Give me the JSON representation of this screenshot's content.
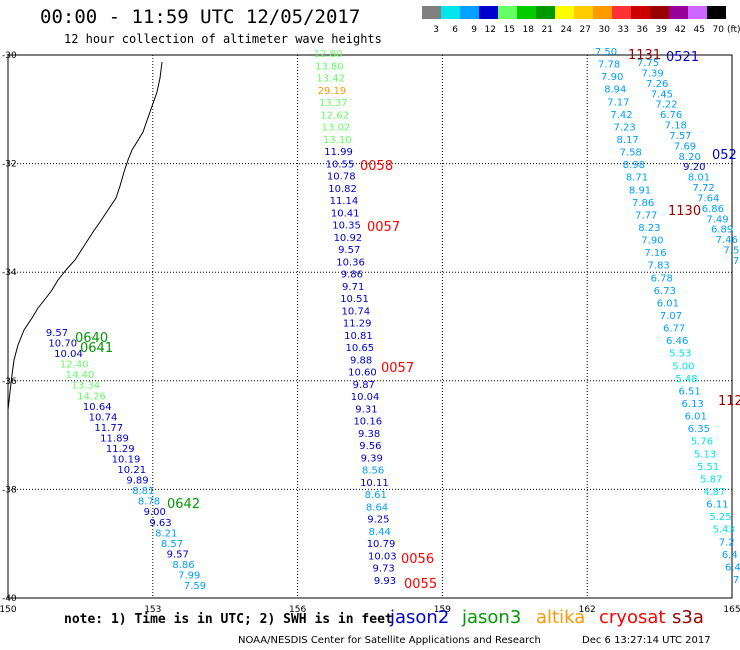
{
  "header": {
    "title": "00:00 - 11:59 UTC 12/05/2017",
    "subtitle": "12 hour collection of altimeter wave heights"
  },
  "colorbar": {
    "unit": "(ft)",
    "bins": [
      {
        "label": "3",
        "color": "#808080"
      },
      {
        "label": "6",
        "color": "#00e5ee"
      },
      {
        "label": "9",
        "color": "#00a0ff"
      },
      {
        "label": "12",
        "color": "#0000cd"
      },
      {
        "label": "15",
        "color": "#66ff66"
      },
      {
        "label": "18",
        "color": "#00cc00"
      },
      {
        "label": "21",
        "color": "#009900"
      },
      {
        "label": "24",
        "color": "#ffff00"
      },
      {
        "label": "27",
        "color": "#ffcc00"
      },
      {
        "label": "30",
        "color": "#ff9900"
      },
      {
        "label": "33",
        "color": "#ff3333"
      },
      {
        "label": "36",
        "color": "#cc0000"
      },
      {
        "label": "39",
        "color": "#990000"
      },
      {
        "label": "42",
        "color": "#990099"
      },
      {
        "label": "45",
        "color": "#cc66ff"
      },
      {
        "label": "70",
        "color": "#000000"
      }
    ]
  },
  "axes": {
    "x_ticks": [
      "150",
      "153",
      "156",
      "159",
      "162",
      "165"
    ],
    "y_ticks": [
      "-30",
      "-32",
      "-34",
      "-36",
      "-38",
      "-40"
    ]
  },
  "footer": {
    "note": "note: 1) Time is in UTC; 2) SWH is in feet",
    "credit": "NOAA/NESDIS Center for Satellite Applications and Research",
    "timestamp": "Dec  6 13:27:14 UTC 2017"
  },
  "legend_satellites": [
    {
      "name": "jason2",
      "color": "#0000cd"
    },
    {
      "name": "jason3",
      "color": "#009900"
    },
    {
      "name": "altika",
      "color": "#ff9900"
    },
    {
      "name": "cryosat",
      "color": "#ff0000"
    },
    {
      "name": "s3a",
      "color": "#990000"
    }
  ],
  "tracks": [
    {
      "id": "t156",
      "labels": [
        [
          "12.80",
          "#66ff66"
        ],
        [
          "13.80",
          "#66ff66"
        ],
        [
          "13.42",
          "#66ff66"
        ],
        [
          "29.19",
          "#ff9900"
        ],
        [
          "13.37",
          "#66ff66"
        ],
        [
          "12.62",
          "#66ff66"
        ],
        [
          "13.02",
          "#66ff66"
        ],
        [
          "13.10",
          "#66ff66"
        ],
        [
          "11.99",
          "#0000cd"
        ],
        [
          "10.55",
          "#0000cd"
        ],
        [
          "10.78",
          "#0000cd"
        ],
        [
          "10.82",
          "#0000cd"
        ],
        [
          "11.14",
          "#0000cd"
        ],
        [
          "10.41",
          "#0000cd"
        ],
        [
          "10.35",
          "#0000cd"
        ],
        [
          "10.92",
          "#0000cd"
        ],
        [
          "9.57",
          "#0000cd"
        ],
        [
          "10.36",
          "#0000cd"
        ],
        [
          "9.86",
          "#0000cd"
        ],
        [
          "9.71",
          "#0000cd"
        ],
        [
          "10.51",
          "#0000cd"
        ],
        [
          "10.74",
          "#0000cd"
        ],
        [
          "11.29",
          "#0000cd"
        ],
        [
          "10.81",
          "#0000cd"
        ],
        [
          "10.65",
          "#0000cd"
        ],
        [
          "9.88",
          "#0000cd"
        ],
        [
          "10.60",
          "#0000cd"
        ],
        [
          "9.87",
          "#0000cd"
        ],
        [
          "10.04",
          "#0000cd"
        ],
        [
          "9.31",
          "#0000cd"
        ],
        [
          "10.16",
          "#0000cd"
        ],
        [
          "9.38",
          "#0000cd"
        ],
        [
          "9.56",
          "#0000cd"
        ],
        [
          "9.39",
          "#0000cd"
        ],
        [
          "8.56",
          "#00a0ff"
        ],
        [
          "10.11",
          "#0000cd"
        ],
        [
          "8.61",
          "#00a0ff"
        ],
        [
          "8.64",
          "#00a0ff"
        ],
        [
          "9.25",
          "#0000cd"
        ],
        [
          "8.44",
          "#00a0ff"
        ],
        [
          "10.79",
          "#0000cd"
        ],
        [
          "10.03",
          "#0000cd"
        ],
        [
          "9.73",
          "#0000cd"
        ],
        [
          "9.93",
          "#0000cd"
        ]
      ]
    },
    {
      "id": "tcoast",
      "labels": [
        [
          "9.57",
          "#0000cd"
        ],
        [
          "10.70",
          "#0000cd"
        ],
        [
          "10.04",
          "#0000cd"
        ],
        [
          "12.40",
          "#66ff66"
        ],
        [
          "14.40",
          "#66ff66"
        ],
        [
          "13.34",
          "#66ff66"
        ],
        [
          "14.26",
          "#66ff66"
        ],
        [
          "10.64",
          "#0000cd"
        ],
        [
          "10.74",
          "#0000cd"
        ],
        [
          "11.77",
          "#0000cd"
        ],
        [
          "11.89",
          "#0000cd"
        ],
        [
          "11.29",
          "#0000cd"
        ],
        [
          "10.19",
          "#0000cd"
        ],
        [
          "10.21",
          "#0000cd"
        ],
        [
          "9.89",
          "#0000cd"
        ],
        [
          "8.81",
          "#00a0ff"
        ],
        [
          "8.78",
          "#00a0ff"
        ],
        [
          "9.00",
          "#0000cd"
        ],
        [
          "9.63",
          "#0000cd"
        ],
        [
          "8.21",
          "#00a0ff"
        ],
        [
          "8.57",
          "#00a0ff"
        ],
        [
          "9.57",
          "#0000cd"
        ],
        [
          "8.86",
          "#00a0ff"
        ],
        [
          "7.99",
          "#00a0ff"
        ],
        [
          "7.59",
          "#00a0ff"
        ]
      ]
    },
    {
      "id": "teast1",
      "labels": [
        [
          "7.50",
          "#00a0ff"
        ],
        [
          "7.78",
          "#00a0ff"
        ],
        [
          "7.90",
          "#00a0ff"
        ],
        [
          "8.94",
          "#00a0ff"
        ],
        [
          "7.17",
          "#00a0ff"
        ],
        [
          "7.42",
          "#00a0ff"
        ],
        [
          "7.23",
          "#00a0ff"
        ],
        [
          "8.17",
          "#00a0ff"
        ],
        [
          "7.58",
          "#00a0ff"
        ],
        [
          "8.98",
          "#00a0ff"
        ],
        [
          "8.71",
          "#00a0ff"
        ],
        [
          "8.91",
          "#00a0ff"
        ],
        [
          "7.86",
          "#00a0ff"
        ],
        [
          "7.77",
          "#00a0ff"
        ],
        [
          "8.23",
          "#00a0ff"
        ],
        [
          "7.90",
          "#00a0ff"
        ],
        [
          "7.16",
          "#00a0ff"
        ],
        [
          "7.83",
          "#00a0ff"
        ],
        [
          "6.78",
          "#00a0ff"
        ],
        [
          "6.73",
          "#00a0ff"
        ],
        [
          "6.01",
          "#00a0ff"
        ],
        [
          "7.07",
          "#00a0ff"
        ],
        [
          "6.77",
          "#00a0ff"
        ],
        [
          "6.46",
          "#00a0ff"
        ],
        [
          "5.53",
          "#00e5ee"
        ],
        [
          "5.00",
          "#00e5ee"
        ],
        [
          "5.48",
          "#00e5ee"
        ],
        [
          "6.51",
          "#00a0ff"
        ],
        [
          "6.13",
          "#00a0ff"
        ],
        [
          "6.01",
          "#00a0ff"
        ],
        [
          "6.35",
          "#00a0ff"
        ],
        [
          "5.76",
          "#00e5ee"
        ],
        [
          "5.13",
          "#00e5ee"
        ],
        [
          "5.51",
          "#00e5ee"
        ],
        [
          "5.87",
          "#00e5ee"
        ],
        [
          "4.87",
          "#00e5ee"
        ],
        [
          "6.11",
          "#00a0ff"
        ],
        [
          "5.25",
          "#00e5ee"
        ],
        [
          "5.43",
          "#00e5ee"
        ],
        [
          "7.2",
          "#00a0ff"
        ],
        [
          "6.4",
          "#00a0ff"
        ],
        [
          "6.4",
          "#00a0ff"
        ],
        [
          "7",
          "#00a0ff"
        ]
      ]
    },
    {
      "id": "teast2",
      "labels": [
        [
          "7.75",
          "#00a0ff"
        ],
        [
          "7.39",
          "#00a0ff"
        ],
        [
          "7.26",
          "#00a0ff"
        ],
        [
          "7.45",
          "#00a0ff"
        ],
        [
          "7.22",
          "#00a0ff"
        ],
        [
          "6.76",
          "#00a0ff"
        ],
        [
          "7.18",
          "#00a0ff"
        ],
        [
          "7.57",
          "#00a0ff"
        ],
        [
          "7.69",
          "#00a0ff"
        ],
        [
          "8.20",
          "#00a0ff"
        ],
        [
          "9.20",
          "#0000cd"
        ],
        [
          "8.01",
          "#00a0ff"
        ],
        [
          "7.72",
          "#00a0ff"
        ],
        [
          "7.64",
          "#00a0ff"
        ],
        [
          "6.86",
          "#00a0ff"
        ],
        [
          "7.49",
          "#00a0ff"
        ],
        [
          "6.89",
          "#00a0ff"
        ],
        [
          "7.46",
          "#00a0ff"
        ],
        [
          "7.5",
          "#00a0ff"
        ],
        [
          "7",
          "#00a0ff"
        ]
      ]
    }
  ],
  "time_labels": [
    [
      "0058",
      "#ff0000"
    ],
    [
      "0057",
      "#ff0000"
    ],
    [
      "0057",
      "#ff0000"
    ],
    [
      "0056",
      "#ff0000"
    ],
    [
      "0055",
      "#ff0000"
    ],
    [
      "0640",
      "#009900"
    ],
    [
      "0641",
      "#009900"
    ],
    [
      "0642",
      "#009900"
    ],
    [
      "1131",
      "#990000"
    ],
    [
      "0521",
      "#0000cd"
    ],
    [
      "052",
      "#0000cd"
    ],
    [
      "1130",
      "#990000"
    ],
    [
      "112",
      "#990000"
    ]
  ]
}
